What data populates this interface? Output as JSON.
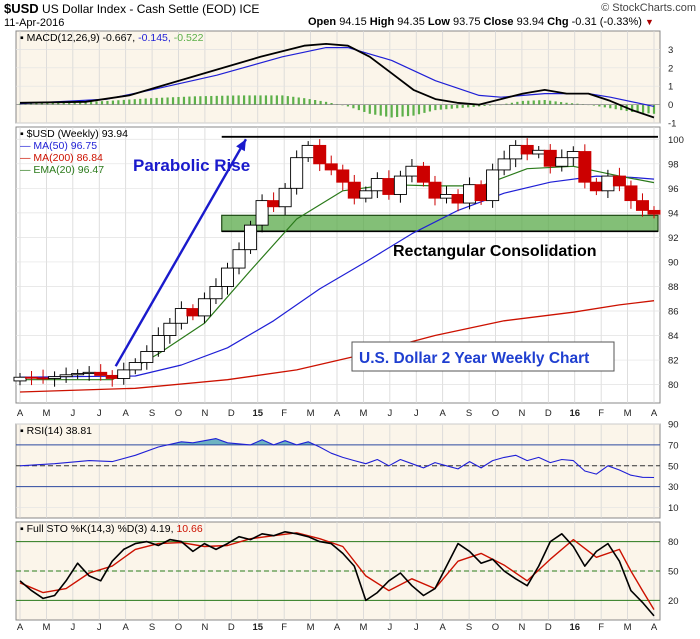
{
  "header": {
    "symbol": "$USD",
    "name": "US Dollar Index - Cash Settle (EOD) ICE",
    "watermark": "© StockCharts.com",
    "date": "11-Apr-2016",
    "quote": {
      "open_label": "Open",
      "open": "94.15",
      "high_label": "High",
      "high": "94.35",
      "low_label": "Low",
      "low": "93.75",
      "close_label": "Close",
      "close": "93.94",
      "chg_label": "Chg",
      "chg": "-0.31 (-0.33%)"
    }
  },
  "colors": {
    "up": "#ffffff",
    "down": "#cc0000",
    "ma50": "#1f1fd6",
    "ma200": "#cc1100",
    "ema20": "#2a7a1a",
    "macd": "#000000",
    "signal": "#1f1fd6",
    "hist": "#5db04a",
    "rsi_fill": "#4aa3b8",
    "annot": "#1a1acc",
    "rect_fill": "#5aaa4a"
  },
  "x_labels": [
    "A",
    "M",
    "J",
    "J",
    "A",
    "S",
    "O",
    "N",
    "D",
    "15",
    "F",
    "M",
    "A",
    "M",
    "J",
    "J",
    "A",
    "S",
    "O",
    "N",
    "D",
    "16",
    "F",
    "M",
    "A"
  ],
  "chart_data": [
    {
      "type": "line",
      "panel": "macd",
      "legend": {
        "label": "MACD(12,26,9)",
        "v1": "-0.667",
        "v2": "-0.145",
        "v3": "-0.522"
      },
      "ylim": [
        -1,
        4
      ],
      "y_ticks": [
        -1,
        0,
        1,
        2,
        3
      ],
      "macd": [
        [
          0,
          0.1
        ],
        [
          3,
          0.15
        ],
        [
          5,
          0.5
        ],
        [
          7,
          1.2
        ],
        [
          9,
          1.9
        ],
        [
          11,
          2.6
        ],
        [
          13,
          3.2
        ],
        [
          14,
          3.3
        ],
        [
          15,
          3.2
        ],
        [
          16,
          2.6
        ],
        [
          17,
          1.7
        ],
        [
          18,
          0.8
        ],
        [
          19,
          0.3
        ],
        [
          20,
          0.1
        ],
        [
          21,
          0.0
        ],
        [
          22,
          0.3
        ],
        [
          23,
          0.6
        ],
        [
          24,
          0.8
        ],
        [
          25,
          0.6
        ],
        [
          26,
          0.6
        ],
        [
          27,
          0.2
        ],
        [
          28,
          -0.3
        ],
        [
          29,
          -0.7
        ]
      ],
      "signal": [
        [
          0,
          0.05
        ],
        [
          4,
          0.3
        ],
        [
          6,
          0.8
        ],
        [
          9,
          1.6
        ],
        [
          12,
          2.6
        ],
        [
          14,
          3.1
        ],
        [
          15,
          3.1
        ],
        [
          17,
          2.4
        ],
        [
          19,
          1.3
        ],
        [
          21,
          0.5
        ],
        [
          22,
          0.4
        ],
        [
          24,
          0.6
        ],
        [
          26,
          0.6
        ],
        [
          27,
          0.4
        ],
        [
          29,
          -0.1
        ]
      ],
      "hist": [
        [
          0,
          0.05
        ],
        [
          2,
          0.1
        ],
        [
          4,
          0.2
        ],
        [
          6,
          0.35
        ],
        [
          8,
          0.45
        ],
        [
          10,
          0.5
        ],
        [
          12,
          0.5
        ],
        [
          13,
          0.35
        ],
        [
          14,
          0.15
        ],
        [
          15,
          -0.1
        ],
        [
          16,
          -0.5
        ],
        [
          17,
          -0.7
        ],
        [
          18,
          -0.6
        ],
        [
          19,
          -0.3
        ],
        [
          20,
          -0.2
        ],
        [
          21,
          -0.1
        ],
        [
          22,
          0.0
        ],
        [
          23,
          0.2
        ],
        [
          24,
          0.25
        ],
        [
          25,
          0.1
        ],
        [
          26,
          0.0
        ],
        [
          27,
          -0.2
        ],
        [
          28,
          -0.4
        ],
        [
          29,
          -0.5
        ]
      ]
    },
    {
      "type": "candlestick",
      "panel": "price",
      "legend": [
        {
          "label": "$USD (Weekly) 93.94",
          "color": "#000000"
        },
        {
          "label": "MA(50) 96.75",
          "color": "#1f1fd6"
        },
        {
          "label": "MA(200) 86.84",
          "color": "#cc1100"
        },
        {
          "label": "EMA(20) 96.47",
          "color": "#2a7a1a"
        }
      ],
      "ylim": [
        78.5,
        101
      ],
      "y_ticks": [
        80,
        82,
        84,
        86,
        88,
        90,
        92,
        94,
        96,
        98,
        100
      ],
      "price": [
        [
          0,
          80.6
        ],
        [
          2,
          80.5
        ],
        [
          4,
          80.8
        ],
        [
          6,
          81.0
        ],
        [
          8,
          80.5
        ],
        [
          9,
          81.2
        ],
        [
          10,
          81.8
        ],
        [
          11,
          82.7
        ],
        [
          12,
          84.0
        ],
        [
          13,
          85.0
        ],
        [
          14,
          86.2
        ],
        [
          15,
          85.6
        ],
        [
          16,
          87.0
        ],
        [
          17,
          88.0
        ],
        [
          18,
          89.5
        ],
        [
          19,
          91.0
        ],
        [
          20,
          93.0
        ],
        [
          21,
          95.0
        ],
        [
          22,
          94.5
        ],
        [
          23,
          96.0
        ],
        [
          24,
          98.5
        ],
        [
          25,
          99.5
        ],
        [
          26,
          98.0
        ],
        [
          27,
          97.5
        ],
        [
          28,
          96.5
        ],
        [
          29,
          95.2
        ],
        [
          30,
          95.8
        ],
        [
          31,
          96.8
        ],
        [
          32,
          95.5
        ],
        [
          33,
          97.0
        ],
        [
          34,
          97.8
        ],
        [
          35,
          96.5
        ],
        [
          36,
          95.2
        ],
        [
          37,
          95.5
        ],
        [
          38,
          94.8
        ],
        [
          39,
          96.3
        ],
        [
          40,
          95.0
        ],
        [
          41,
          97.5
        ],
        [
          42,
          98.4
        ],
        [
          43,
          99.5
        ],
        [
          44,
          98.8
        ],
        [
          45,
          99.1
        ],
        [
          46,
          97.8
        ],
        [
          47,
          98.5
        ],
        [
          48,
          99.0
        ],
        [
          49,
          96.5
        ],
        [
          50,
          95.8
        ],
        [
          51,
          97.0
        ],
        [
          52,
          96.2
        ],
        [
          53,
          95.0
        ],
        [
          54,
          94.2
        ],
        [
          55,
          93.9
        ]
      ],
      "ma50": [
        [
          0,
          80.6
        ],
        [
          10,
          80.7
        ],
        [
          14,
          81.6
        ],
        [
          18,
          83.0
        ],
        [
          22,
          85.2
        ],
        [
          26,
          87.8
        ],
        [
          30,
          90.0
        ],
        [
          34,
          92.3
        ],
        [
          38,
          94.2
        ],
        [
          42,
          95.6
        ],
        [
          46,
          96.5
        ],
        [
          50,
          97.0
        ],
        [
          53,
          96.9
        ],
        [
          55,
          96.75
        ]
      ],
      "ma200": [
        [
          0,
          79.4
        ],
        [
          10,
          79.7
        ],
        [
          18,
          80.4
        ],
        [
          24,
          81.2
        ],
        [
          30,
          82.5
        ],
        [
          36,
          84.0
        ],
        [
          42,
          85.2
        ],
        [
          48,
          85.9
        ],
        [
          52,
          86.5
        ],
        [
          55,
          86.84
        ]
      ],
      "ema20": [
        [
          0,
          80.4
        ],
        [
          8,
          80.4
        ],
        [
          12,
          82.5
        ],
        [
          16,
          85.0
        ],
        [
          20,
          89.3
        ],
        [
          24,
          93.5
        ],
        [
          28,
          95.8
        ],
        [
          32,
          96.3
        ],
        [
          36,
          96.2
        ],
        [
          40,
          96.2
        ],
        [
          44,
          97.6
        ],
        [
          48,
          97.8
        ],
        [
          52,
          97.0
        ],
        [
          55,
          96.47
        ]
      ],
      "annotations": {
        "parabolic": "Parabolic Rise",
        "consolidation": "Rectangular Consolidation",
        "title_box": "U.S. Dollar 2 Year Weekly Chart"
      },
      "resistance": 100.2,
      "support_band": [
        92.5,
        93.8
      ]
    },
    {
      "type": "line",
      "panel": "rsi",
      "legend": {
        "label": "RSI(14)",
        "value": "38.81"
      },
      "ylim": [
        0,
        90
      ],
      "y_ticks": [
        10,
        30,
        50,
        70,
        90
      ],
      "levels": [
        30,
        50,
        70
      ],
      "rsi": [
        [
          0,
          50
        ],
        [
          3,
          52
        ],
        [
          6,
          55
        ],
        [
          8,
          54
        ],
        [
          10,
          60
        ],
        [
          12,
          68
        ],
        [
          14,
          73
        ],
        [
          15,
          72
        ],
        [
          17,
          76
        ],
        [
          18,
          72
        ],
        [
          20,
          70
        ],
        [
          21,
          75
        ],
        [
          22,
          70
        ],
        [
          23,
          74
        ],
        [
          24,
          70
        ],
        [
          25,
          73
        ],
        [
          26,
          68
        ],
        [
          27,
          62
        ],
        [
          28,
          58
        ],
        [
          29,
          55
        ],
        [
          30,
          52
        ],
        [
          31,
          56
        ],
        [
          32,
          50
        ],
        [
          33,
          56
        ],
        [
          34,
          52
        ],
        [
          35,
          48
        ],
        [
          36,
          53
        ],
        [
          37,
          50
        ],
        [
          38,
          47
        ],
        [
          39,
          54
        ],
        [
          40,
          48
        ],
        [
          41,
          55
        ],
        [
          42,
          58
        ],
        [
          43,
          60
        ],
        [
          44,
          55
        ],
        [
          45,
          58
        ],
        [
          46,
          53
        ],
        [
          47,
          56
        ],
        [
          48,
          55
        ],
        [
          49,
          45
        ],
        [
          50,
          42
        ],
        [
          51,
          50
        ],
        [
          52,
          46
        ],
        [
          53,
          41
        ],
        [
          54,
          39
        ],
        [
          55,
          38.81
        ]
      ]
    },
    {
      "type": "line",
      "panel": "stochastic",
      "legend": {
        "label": "Full STO %K(14,3) %D(3)",
        "k": "4.19",
        "d": "10.66"
      },
      "ylim": [
        0,
        100
      ],
      "y_ticks": [
        20,
        50,
        80
      ],
      "levels": [
        20,
        50,
        80
      ],
      "k": [
        [
          0,
          40
        ],
        [
          1,
          30
        ],
        [
          2,
          22
        ],
        [
          3,
          25
        ],
        [
          4,
          40
        ],
        [
          5,
          58
        ],
        [
          6,
          45
        ],
        [
          7,
          40
        ],
        [
          8,
          60
        ],
        [
          9,
          72
        ],
        [
          10,
          78
        ],
        [
          11,
          80
        ],
        [
          12,
          76
        ],
        [
          13,
          82
        ],
        [
          14,
          80
        ],
        [
          15,
          70
        ],
        [
          16,
          78
        ],
        [
          17,
          72
        ],
        [
          18,
          78
        ],
        [
          19,
          85
        ],
        [
          20,
          82
        ],
        [
          21,
          88
        ],
        [
          22,
          86
        ],
        [
          23,
          90
        ],
        [
          24,
          88
        ],
        [
          25,
          85
        ],
        [
          26,
          80
        ],
        [
          27,
          78
        ],
        [
          28,
          68
        ],
        [
          29,
          55
        ],
        [
          30,
          20
        ],
        [
          31,
          28
        ],
        [
          32,
          40
        ],
        [
          33,
          48
        ],
        [
          34,
          35
        ],
        [
          35,
          25
        ],
        [
          36,
          32
        ],
        [
          37,
          55
        ],
        [
          38,
          78
        ],
        [
          39,
          70
        ],
        [
          40,
          58
        ],
        [
          41,
          62
        ],
        [
          42,
          50
        ],
        [
          43,
          42
        ],
        [
          44,
          35
        ],
        [
          45,
          55
        ],
        [
          46,
          80
        ],
        [
          47,
          88
        ],
        [
          48,
          75
        ],
        [
          49,
          55
        ],
        [
          50,
          70
        ],
        [
          51,
          78
        ],
        [
          52,
          60
        ],
        [
          53,
          30
        ],
        [
          54,
          18
        ],
        [
          55,
          4.19
        ]
      ],
      "d": [
        [
          0,
          38
        ],
        [
          2,
          28
        ],
        [
          4,
          32
        ],
        [
          6,
          48
        ],
        [
          8,
          55
        ],
        [
          10,
          72
        ],
        [
          12,
          78
        ],
        [
          14,
          79
        ],
        [
          16,
          75
        ],
        [
          18,
          76
        ],
        [
          20,
          83
        ],
        [
          22,
          86
        ],
        [
          24,
          89
        ],
        [
          26,
          83
        ],
        [
          28,
          75
        ],
        [
          30,
          45
        ],
        [
          32,
          30
        ],
        [
          34,
          42
        ],
        [
          36,
          32
        ],
        [
          38,
          60
        ],
        [
          40,
          68
        ],
        [
          42,
          56
        ],
        [
          44,
          40
        ],
        [
          46,
          62
        ],
        [
          48,
          82
        ],
        [
          50,
          64
        ],
        [
          52,
          72
        ],
        [
          53,
          50
        ],
        [
          54,
          30
        ],
        [
          55,
          10.66
        ]
      ]
    }
  ]
}
